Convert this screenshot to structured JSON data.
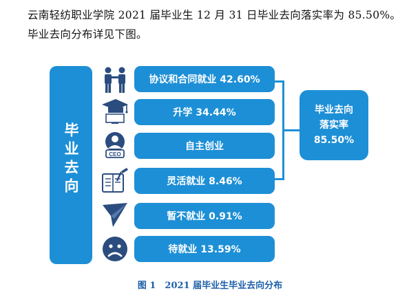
{
  "intro": {
    "text": "云南轻纺职业学院 2021 届毕业生 12 月 31 日毕业去向落实率为 85.50%。毕业去向分布详见下图。"
  },
  "figure": {
    "left_label": "毕业去向",
    "items": [
      {
        "label": "协议和合同就业 42.60%",
        "icon": "handshake-people-icon"
      },
      {
        "label": "升学 34.44%",
        "icon": "graduation-cap-icon"
      },
      {
        "label": "自主创业",
        "icon": "ceo-icon",
        "icon_text": "CEO"
      },
      {
        "label": "灵活就业 8.46%",
        "icon": "notebook-pen-icon"
      },
      {
        "label": "暂不就业 0.91%",
        "icon": "paper-plane-icon"
      },
      {
        "label": "待就业 13.59%",
        "icon": "sad-face-icon"
      }
    ],
    "total_label_line1": "毕业去向",
    "total_label_line2": "落实率",
    "total_value": "85.50%",
    "caption": "图 1　2021 届毕业生毕业去向分布",
    "accent_color": "#1d8fd6",
    "icon_color": "#2b4c7e"
  }
}
